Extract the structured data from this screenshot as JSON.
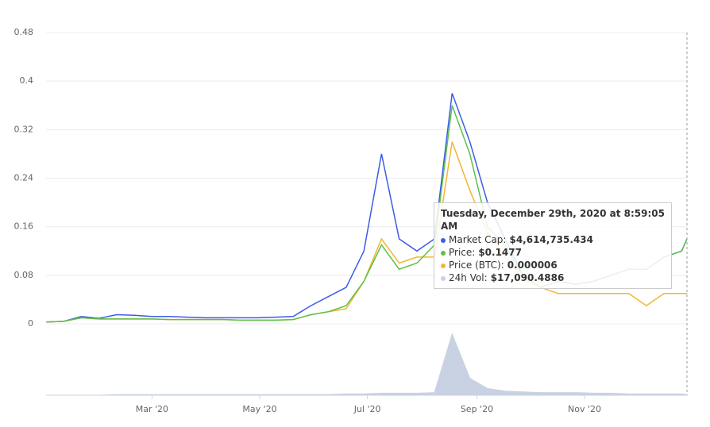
{
  "chart_data": {
    "type": "line",
    "x": [
      0,
      10,
      20,
      30,
      40,
      50,
      60,
      70,
      80,
      90,
      100,
      110,
      120,
      130,
      140,
      150,
      160,
      170,
      180,
      190,
      200,
      210,
      220,
      230,
      240,
      250,
      260,
      270,
      280,
      290,
      300,
      310,
      320,
      330,
      340,
      350,
      360,
      363
    ],
    "xlim": [
      0,
      363
    ],
    "xticks": [
      {
        "value": 60,
        "label": "Mar '20"
      },
      {
        "value": 121,
        "label": "May '20"
      },
      {
        "value": 182,
        "label": "Jul '20"
      },
      {
        "value": 244,
        "label": "Sep '20"
      },
      {
        "value": 305,
        "label": "Nov '20"
      }
    ],
    "ylim": [
      0,
      0.48
    ],
    "yticks": [
      0,
      0.08,
      0.16,
      0.24,
      0.32,
      0.4,
      0.48
    ],
    "y2lim": [
      0,
      100
    ],
    "grid": true,
    "series": [
      {
        "color": "#3b5de7",
        "values": [
          0.003,
          0.004,
          0.012,
          0.009,
          0.015,
          0.014,
          0.012,
          0.012,
          0.011,
          0.01,
          0.01,
          0.01,
          0.01,
          0.011,
          0.012,
          0.03,
          0.045,
          0.06,
          0.12,
          0.28,
          0.14,
          0.12,
          0.14,
          0.38,
          0.3,
          0.2,
          0.14,
          0.08,
          0.06,
          0.07,
          0.065,
          0.07,
          0.08,
          0.09,
          0.09,
          0.11,
          0.12,
          0.14
        ]
      },
      {
        "color": "#5cc04a",
        "values": [
          0.003,
          0.004,
          0.01,
          0.008,
          0.008,
          0.008,
          0.008,
          0.007,
          0.007,
          0.007,
          0.007,
          0.006,
          0.006,
          0.006,
          0.007,
          0.015,
          0.02,
          0.03,
          0.07,
          0.13,
          0.09,
          0.1,
          0.13,
          0.36,
          0.28,
          0.16,
          0.13,
          0.08,
          0.06,
          0.07,
          0.065,
          0.07,
          0.08,
          0.09,
          0.09,
          0.11,
          0.12,
          0.14
        ]
      },
      {
        "color": "#f2b630",
        "values": [
          0.003,
          0.004,
          0.01,
          0.008,
          0.008,
          0.008,
          0.008,
          0.007,
          0.007,
          0.007,
          0.007,
          0.006,
          0.006,
          0.006,
          0.007,
          0.015,
          0.02,
          0.025,
          0.07,
          0.14,
          0.1,
          0.11,
          0.11,
          0.3,
          0.22,
          0.15,
          0.11,
          0.075,
          0.06,
          0.05,
          0.05,
          0.05,
          0.05,
          0.05,
          0.03,
          0.05,
          0.05,
          0.05
        ]
      },
      {
        "color": "#c9d2e3",
        "axis": "y2",
        "values": [
          0,
          0,
          0,
          0,
          1,
          1,
          1,
          1,
          1,
          1,
          1,
          1,
          1,
          1,
          1,
          1,
          1,
          2,
          2,
          3,
          3,
          3,
          4,
          90,
          25,
          10,
          6,
          5,
          4,
          4,
          4,
          3,
          3,
          2,
          2,
          2,
          2,
          1
        ]
      }
    ],
    "tooltip": {
      "title": "Tuesday, December 29th, 2020 at 8:59:05 AM",
      "rows": [
        {
          "label": "Market Cap:",
          "value": "$4,614,735.434"
        },
        {
          "label": "Price:",
          "value": "$0.1477"
        },
        {
          "label": "Price (BTC):",
          "value": "0.000006"
        },
        {
          "label": "24h Vol:",
          "value": "$17,090.4886"
        }
      ]
    }
  }
}
